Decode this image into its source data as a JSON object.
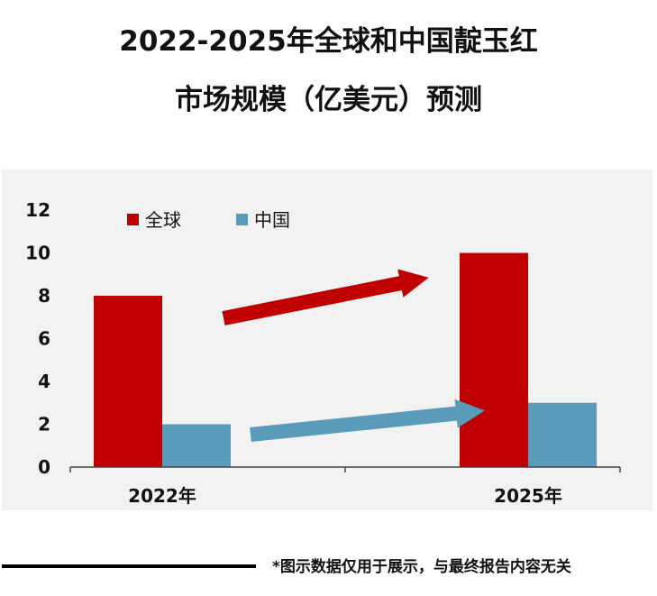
{
  "title_line1": "2022-2025年全球和中国靛玉红",
  "title_line2": "市场规模（亿美元）预测",
  "footer_note": "*图示数据仅用于展示，与最终报告内容无关",
  "colors": {
    "global": "#c00000",
    "china": "#5b9bba"
  },
  "chart_data": {
    "type": "bar",
    "title": "2022-2025年全球和中国靛玉红市场规模（亿美元）预测",
    "categories": [
      "2022年",
      "2025年"
    ],
    "series": [
      {
        "name": "全球",
        "values": [
          8,
          10
        ]
      },
      {
        "name": "中国",
        "values": [
          2,
          3
        ]
      }
    ],
    "ylim": [
      0,
      12
    ],
    "yticks": [
      "0",
      "2",
      "4",
      "6",
      "8",
      "10",
      "12"
    ],
    "legend_position": "top-left",
    "grid": false
  }
}
